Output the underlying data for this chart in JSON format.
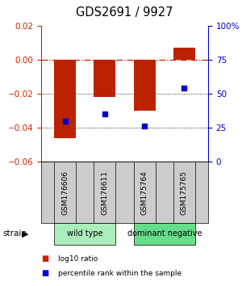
{
  "title": "GDS2691 / 9927",
  "samples": [
    "GSM176606",
    "GSM176611",
    "GSM175764",
    "GSM175765"
  ],
  "log10_ratio": [
    -0.046,
    -0.022,
    -0.03,
    0.007
  ],
  "percentile_rank": [
    30,
    35,
    26,
    54
  ],
  "ylim_left": [
    -0.06,
    0.02
  ],
  "ylim_right": [
    0,
    100
  ],
  "yticks_left": [
    -0.06,
    -0.04,
    -0.02,
    0.0,
    0.02
  ],
  "yticks_right": [
    0,
    25,
    50,
    75,
    100
  ],
  "ytick_labels_right": [
    "0",
    "25",
    "50",
    "75",
    "100%"
  ],
  "bar_color": "#bb2200",
  "dot_color": "#0000cc",
  "zero_line_color": "#cc2200",
  "groups": [
    {
      "label": "wild type",
      "samples": [
        0,
        1
      ],
      "color": "#aaeebb"
    },
    {
      "label": "dominant negative",
      "samples": [
        2,
        3
      ],
      "color": "#66dd88"
    }
  ],
  "strain_label": "strain",
  "legend_items": [
    {
      "color": "#cc2200",
      "label": "log10 ratio"
    },
    {
      "color": "#0000cc",
      "label": "percentile rank within the sample"
    }
  ],
  "bar_width": 0.55,
  "background_color": "#ffffff",
  "plot_bg_color": "#ffffff"
}
